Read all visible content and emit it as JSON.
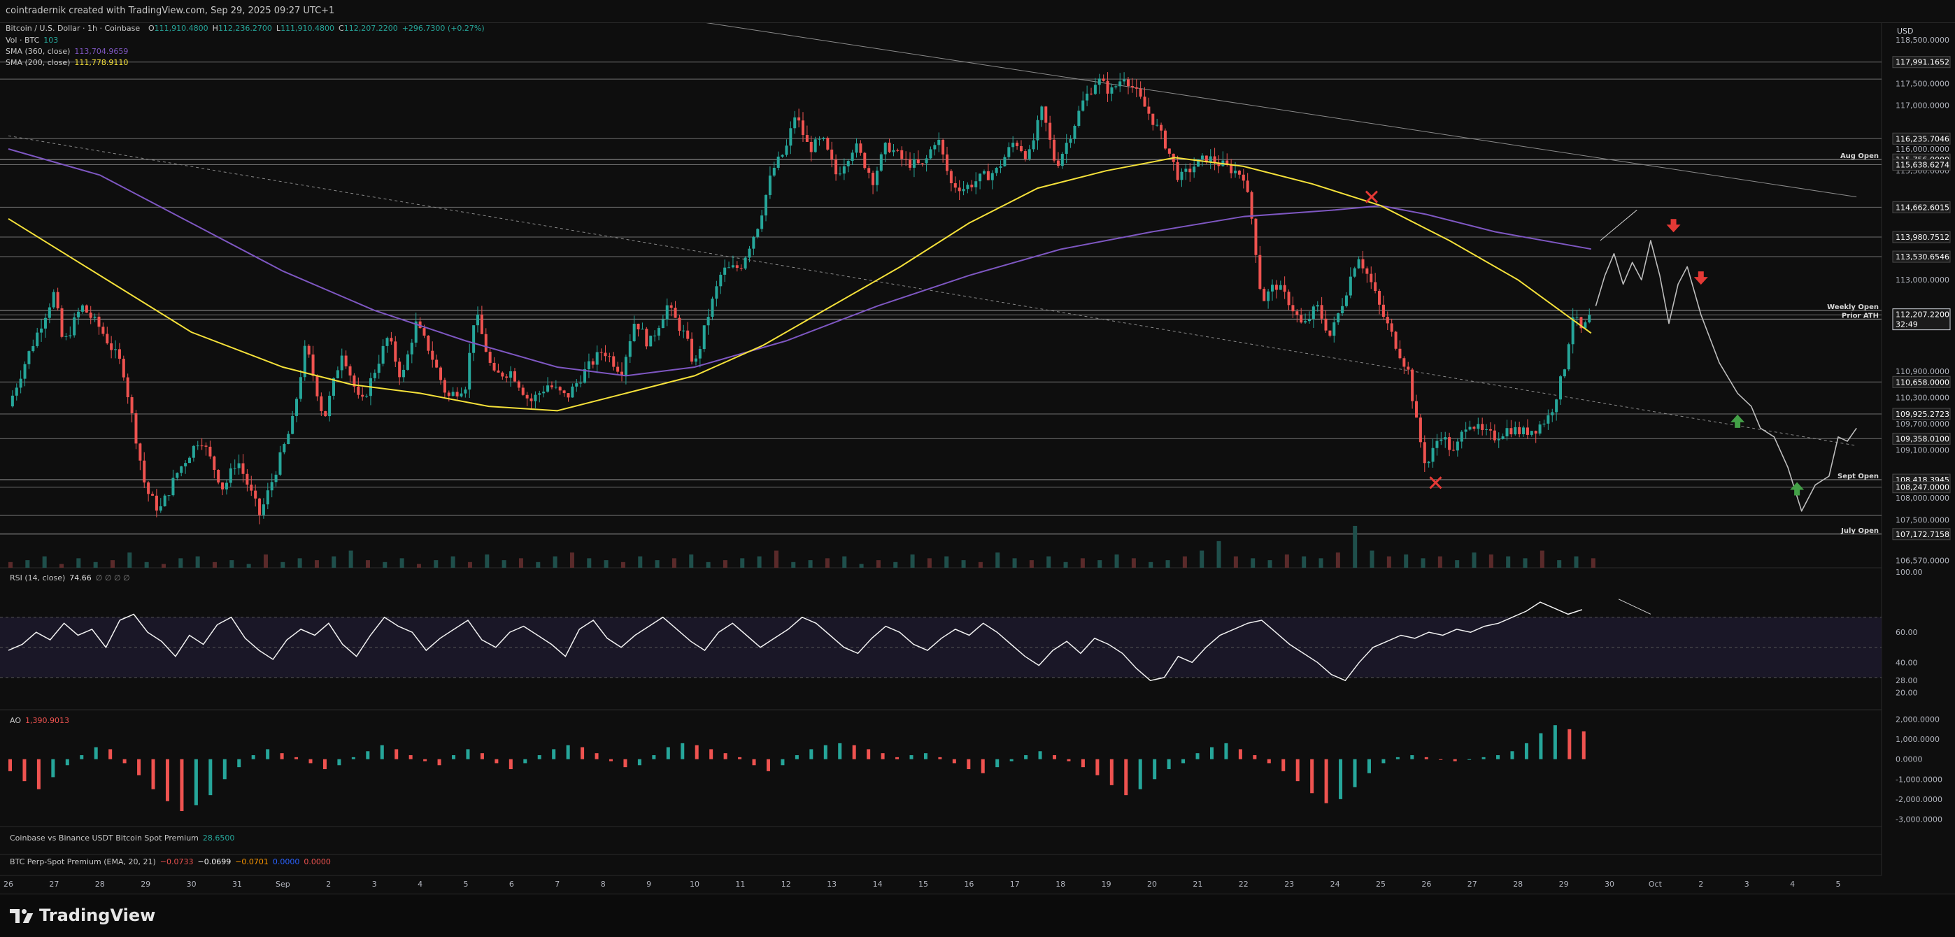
{
  "header": {
    "credit": "cointradernik created with TradingView.com, Sep 29, 2025 09:27 UTC+1"
  },
  "legend": {
    "symbol": "Bitcoin / U.S. Dollar · 1h · Coinbase",
    "ohlc": [
      {
        "k": "O",
        "v": "111,910.4800"
      },
      {
        "k": "H",
        "v": "112,236.2700"
      },
      {
        "k": "L",
        "v": "111,910.4800"
      },
      {
        "k": "C",
        "v": "112,207.2200"
      }
    ],
    "change": "+296.7300 (+0.27%)",
    "vol_label": "Vol · BTC",
    "vol_value": "103",
    "sma360_label": "SMA (360, close)",
    "sma360_value": "113,704.9659",
    "sma200_label": "SMA (200, close)",
    "sma200_value": "111,778.9110"
  },
  "colors": {
    "up": "#26a69a",
    "down": "#ef5350",
    "sma200": "#f5e13a",
    "sma360": "#7e57c2",
    "arrow_down": "#e53935",
    "arrow_up": "#43a047",
    "x_mark": "#e53935",
    "text_label": "#c8c8c8"
  },
  "currency": "USD",
  "price_axis": {
    "ticks": [
      "118,500.0000",
      "117,500.0000",
      "117,000.0000",
      "116,000.0000",
      "115,500.0000",
      "114,000.0000",
      "113,000.0000",
      "112,000.0000",
      "110,900.0000",
      "110,300.0000",
      "109,700.0000",
      "109,100.0000",
      "108,000.0000",
      "107,500.0000",
      "106,570.0000"
    ],
    "tick_values": [
      118500,
      117500,
      117000,
      116000,
      115500,
      114000,
      113000,
      112000,
      110900,
      110300,
      109700,
      109100,
      108000,
      107500,
      106570
    ],
    "boxed": [
      {
        "value": 117991.1652,
        "text": "117,991.1652"
      },
      {
        "value": 116235.7046,
        "text": "116,235.7046"
      },
      {
        "value": 115756.0,
        "text": "115,756.0000"
      },
      {
        "value": 115638.6274,
        "text": "115,638.6274"
      },
      {
        "value": 114662.6015,
        "text": "114,662.6015"
      },
      {
        "value": 113980.7512,
        "text": "113,980.7512"
      },
      {
        "value": 113530.6546,
        "text": "113,530.6546"
      },
      {
        "value": 112197.0,
        "text": "112,197.0000"
      },
      {
        "value": 110658.0,
        "text": "110,658.0000"
      },
      {
        "value": 109925.2723,
        "text": "109,925.2723"
      },
      {
        "value": 109358.01,
        "text": "109,358.0100"
      },
      {
        "value": 108418.3945,
        "text": "108,418.3945"
      },
      {
        "value": 108247.0,
        "text": "108,247.0000"
      },
      {
        "value": 107172.7158,
        "text": "107,172.7158"
      }
    ],
    "current_price": "112,207.2200",
    "countdown": "32:49"
  },
  "levels": [
    {
      "name": "Aug Open",
      "value": 115756.0
    },
    {
      "name": "Weekly Open",
      "value": 112300.0
    },
    {
      "name": "Prior ATH",
      "value": 112100.0
    },
    {
      "name": "Sept Open",
      "value": 108418.3945
    },
    {
      "name": "July Open",
      "value": 107172.7158
    }
  ],
  "plain_levels": [
    117991.1652,
    117600,
    116235.7046,
    115638.6274,
    114662.6015,
    113980.7512,
    113530.6546,
    112197,
    110658,
    109925.2723,
    109358.01,
    108247,
    107600
  ],
  "chart_data": [
    {
      "type": "candlestick",
      "title": "Bitcoin / U.S. Dollar · 1h · Coinbase",
      "x_ticks": [
        "26",
        "27",
        "28",
        "29",
        "30",
        "31",
        "Sep",
        "2",
        "3",
        "4",
        "5",
        "6",
        "7",
        "8",
        "9",
        "10",
        "11",
        "12",
        "13",
        "14",
        "15",
        "16",
        "17",
        "18",
        "19",
        "20",
        "21",
        "22",
        "23",
        "24",
        "25",
        "26",
        "27",
        "28",
        "29",
        "30",
        "Oct",
        "2",
        "3",
        "4",
        "5"
      ],
      "ylim": [
        106400,
        118900
      ],
      "price_path": [
        [
          0,
          110100
        ],
        [
          0.4,
          111200
        ],
        [
          1,
          112700
        ],
        [
          1.2,
          111500
        ],
        [
          1.6,
          112400
        ],
        [
          2.0,
          111900
        ],
        [
          2.5,
          111000
        ],
        [
          3.0,
          108200
        ],
        [
          3.3,
          107700
        ],
        [
          3.7,
          108600
        ],
        [
          4.2,
          109400
        ],
        [
          4.7,
          108200
        ],
        [
          5.0,
          108900
        ],
        [
          5.5,
          107600
        ],
        [
          6.0,
          109100
        ],
        [
          6.2,
          109700
        ],
        [
          6.5,
          111500
        ],
        [
          6.9,
          109800
        ],
        [
          7.3,
          111400
        ],
        [
          7.7,
          110100
        ],
        [
          8.0,
          110900
        ],
        [
          8.3,
          111700
        ],
        [
          8.6,
          110700
        ],
        [
          8.9,
          112000
        ],
        [
          9.2,
          111400
        ],
        [
          9.6,
          110300
        ],
        [
          10.0,
          110600
        ],
        [
          10.2,
          112300
        ],
        [
          10.6,
          110800
        ],
        [
          11.0,
          110900
        ],
        [
          11.4,
          110200
        ],
        [
          11.8,
          110600
        ],
        [
          12.2,
          110300
        ],
        [
          12.6,
          110900
        ],
        [
          13.0,
          111400
        ],
        [
          13.4,
          110900
        ],
        [
          13.7,
          112100
        ],
        [
          14.0,
          111500
        ],
        [
          14.4,
          112400
        ],
        [
          14.8,
          111700
        ],
        [
          15.0,
          111000
        ],
        [
          15.3,
          112200
        ],
        [
          15.6,
          113200
        ],
        [
          16.0,
          113300
        ],
        [
          16.4,
          114300
        ],
        [
          16.7,
          115500
        ],
        [
          17.0,
          116000
        ],
        [
          17.2,
          116800
        ],
        [
          17.5,
          116000
        ],
        [
          17.8,
          116200
        ],
        [
          18.1,
          115400
        ],
        [
          18.5,
          116100
        ],
        [
          18.9,
          115300
        ],
        [
          19.2,
          116100
        ],
        [
          19.6,
          115700
        ],
        [
          20.0,
          115600
        ],
        [
          20.3,
          116300
        ],
        [
          20.6,
          115200
        ],
        [
          20.9,
          115100
        ],
        [
          21.2,
          115300
        ],
        [
          21.6,
          115500
        ],
        [
          22.0,
          116200
        ],
        [
          22.3,
          115800
        ],
        [
          22.6,
          116900
        ],
        [
          22.9,
          115600
        ],
        [
          23.2,
          116300
        ],
        [
          23.5,
          117100
        ],
        [
          23.8,
          117600
        ],
        [
          24.1,
          117300
        ],
        [
          24.4,
          117700
        ],
        [
          24.7,
          117200
        ],
        [
          25.0,
          116700
        ],
        [
          25.3,
          116100
        ],
        [
          25.6,
          115300
        ],
        [
          25.9,
          115600
        ],
        [
          26.2,
          115800
        ],
        [
          26.6,
          115600
        ],
        [
          27.0,
          115400
        ],
        [
          27.2,
          114300
        ],
        [
          27.4,
          112500
        ],
        [
          27.7,
          112900
        ],
        [
          28.0,
          112500
        ],
        [
          28.3,
          111900
        ],
        [
          28.6,
          112400
        ],
        [
          28.9,
          111700
        ],
        [
          29.2,
          112600
        ],
        [
          29.5,
          113600
        ],
        [
          29.8,
          112900
        ],
        [
          30.0,
          112300
        ],
        [
          30.3,
          111600
        ],
        [
          30.6,
          110900
        ],
        [
          30.8,
          109600
        ],
        [
          31.0,
          108700
        ],
        [
          31.3,
          109500
        ],
        [
          31.6,
          109000
        ],
        [
          31.9,
          109800
        ],
        [
          32.2,
          109500
        ],
        [
          32.5,
          109400
        ],
        [
          32.8,
          109600
        ],
        [
          33.1,
          109500
        ],
        [
          33.4,
          109600
        ],
        [
          33.7,
          109900
        ],
        [
          34.0,
          110900
        ],
        [
          34.2,
          112200
        ],
        [
          34.4,
          111800
        ],
        [
          34.6,
          112207
        ]
      ],
      "sma200_path": [
        [
          0,
          114400
        ],
        [
          2,
          113100
        ],
        [
          4,
          111800
        ],
        [
          6,
          111000
        ],
        [
          7.5,
          110600
        ],
        [
          9,
          110400
        ],
        [
          10.5,
          110100
        ],
        [
          12,
          110000
        ],
        [
          13.5,
          110400
        ],
        [
          15,
          110800
        ],
        [
          16.5,
          111500
        ],
        [
          18,
          112400
        ],
        [
          19.5,
          113300
        ],
        [
          21,
          114300
        ],
        [
          22.5,
          115100
        ],
        [
          24,
          115500
        ],
        [
          25.5,
          115800
        ],
        [
          27,
          115600
        ],
        [
          28.5,
          115200
        ],
        [
          30,
          114700
        ],
        [
          31.5,
          113900
        ],
        [
          33,
          113000
        ],
        [
          34.6,
          111779
        ]
      ],
      "sma360_path": [
        [
          0,
          116000
        ],
        [
          2,
          115400
        ],
        [
          4,
          114300
        ],
        [
          6,
          113200
        ],
        [
          8,
          112300
        ],
        [
          10,
          111600
        ],
        [
          12,
          111000
        ],
        [
          13.5,
          110800
        ],
        [
          15,
          111000
        ],
        [
          17,
          111600
        ],
        [
          19,
          112400
        ],
        [
          21,
          113100
        ],
        [
          23,
          113700
        ],
        [
          25,
          114100
        ],
        [
          27,
          114450
        ],
        [
          29,
          114600
        ],
        [
          30,
          114700
        ],
        [
          31,
          114500
        ],
        [
          32.5,
          114100
        ],
        [
          34.6,
          113705
        ]
      ],
      "forecast_path": [
        [
          34.7,
          112400
        ],
        [
          34.9,
          113100
        ],
        [
          35.1,
          113600
        ],
        [
          35.3,
          112900
        ],
        [
          35.5,
          113400
        ],
        [
          35.7,
          113000
        ],
        [
          35.9,
          113900
        ],
        [
          36.1,
          113100
        ],
        [
          36.3,
          112000
        ],
        [
          36.5,
          112900
        ],
        [
          36.7,
          113300
        ],
        [
          37.0,
          112200
        ],
        [
          37.4,
          111100
        ],
        [
          37.8,
          110400
        ],
        [
          38.1,
          110100
        ],
        [
          38.3,
          109600
        ],
        [
          38.6,
          109400
        ],
        [
          38.9,
          108700
        ],
        [
          39.2,
          107700
        ],
        [
          39.5,
          108300
        ],
        [
          39.8,
          108500
        ],
        [
          40.0,
          109400
        ],
        [
          40.2,
          109300
        ],
        [
          40.4,
          109600
        ]
      ],
      "annotations": {
        "x_marks": [
          [
            29.8,
            114900
          ],
          [
            31.2,
            108350
          ]
        ],
        "arrows_down": [
          [
            36.4,
            114200
          ],
          [
            37.0,
            113000
          ]
        ],
        "arrows_up": [
          [
            37.8,
            109800
          ],
          [
            39.1,
            108250
          ]
        ],
        "arrow_note": [
          [
            34.8,
            113900
          ],
          [
            35.6,
            114600
          ]
        ],
        "trend_dotted": [
          [
            0,
            116300
          ],
          [
            40.4,
            109200
          ]
        ],
        "trend_solid": [
          [
            15.2,
            118900
          ],
          [
            40.4,
            114900
          ]
        ]
      }
    },
    {
      "type": "bar",
      "title": "Vol · BTC",
      "value": 103,
      "bars": [
        3,
        4,
        6,
        2,
        5,
        3,
        4,
        8,
        3,
        2,
        5,
        6,
        3,
        4,
        2,
        7,
        3,
        5,
        4,
        6,
        9,
        4,
        3,
        5,
        2,
        4,
        6,
        3,
        7,
        4,
        5,
        3,
        6,
        8,
        5,
        4,
        3,
        6,
        4,
        5,
        7,
        3,
        4,
        5,
        6,
        9,
        3,
        4,
        5,
        6,
        2,
        4,
        3,
        7,
        5,
        6,
        4,
        3,
        8,
        5,
        4,
        6,
        3,
        5,
        4,
        7,
        5,
        3,
        4,
        6,
        9,
        14,
        6,
        5,
        4,
        7,
        6,
        5,
        8,
        22,
        9,
        6,
        7,
        5,
        6,
        4,
        8,
        7,
        6,
        5,
        9,
        4,
        6,
        5
      ]
    },
    {
      "type": "line",
      "title": "RSI (14, close)",
      "value": "74.66",
      "glyphs": "∅ ∅ ∅ ∅",
      "ticks": [
        "100.00",
        "60.00",
        "40.00",
        "28.00",
        "20.00"
      ],
      "tick_values": [
        100,
        60,
        40,
        28,
        20
      ],
      "ylim": [
        10,
        100
      ],
      "bands": [
        70,
        50,
        30
      ],
      "values": [
        48,
        52,
        60,
        55,
        66,
        58,
        62,
        50,
        68,
        72,
        60,
        54,
        44,
        58,
        52,
        65,
        70,
        56,
        48,
        42,
        55,
        62,
        58,
        66,
        52,
        44,
        58,
        70,
        64,
        60,
        48,
        56,
        62,
        68,
        55,
        50,
        60,
        64,
        58,
        52,
        44,
        62,
        68,
        56,
        50,
        58,
        64,
        70,
        62,
        54,
        48,
        60,
        66,
        58,
        50,
        56,
        62,
        70,
        66,
        58,
        50,
        46,
        56,
        64,
        60,
        52,
        48,
        56,
        62,
        58,
        66,
        60,
        52,
        44,
        38,
        48,
        54,
        46,
        56,
        52,
        46,
        36,
        28,
        30,
        44,
        40,
        50,
        58,
        62,
        66,
        68,
        60,
        52,
        46,
        40,
        32,
        28,
        40,
        50,
        54,
        58,
        56,
        60,
        58,
        62,
        60,
        64,
        66,
        70,
        74,
        80,
        76,
        72,
        75
      ]
    },
    {
      "type": "bar",
      "title": "AO",
      "value": "1,390.9013",
      "ticks": [
        "2,000.0000",
        "1,000.0000",
        "0.0000",
        "-1,000.0000",
        "-2,000.0000",
        "-3,000.0000"
      ],
      "tick_values": [
        2000,
        1000,
        0,
        -1000,
        -2000,
        -3000
      ],
      "ylim": [
        -3300,
        2300
      ],
      "values": [
        -600,
        -1100,
        -1500,
        -900,
        -300,
        200,
        600,
        500,
        -200,
        -800,
        -1500,
        -2100,
        -2600,
        -2300,
        -1800,
        -1000,
        -400,
        200,
        500,
        300,
        100,
        -200,
        -500,
        -300,
        100,
        400,
        700,
        500,
        200,
        -100,
        -300,
        200,
        500,
        300,
        -200,
        -500,
        -200,
        200,
        500,
        700,
        600,
        300,
        -100,
        -400,
        -300,
        200,
        600,
        800,
        700,
        500,
        300,
        100,
        -300,
        -600,
        -300,
        200,
        500,
        700,
        800,
        700,
        500,
        300,
        100,
        200,
        300,
        100,
        -200,
        -500,
        -700,
        -400,
        -100,
        200,
        400,
        200,
        -100,
        -400,
        -800,
        -1300,
        -1800,
        -1500,
        -1000,
        -500,
        -200,
        300,
        600,
        800,
        500,
        200,
        -200,
        -600,
        -1100,
        -1700,
        -2200,
        -2000,
        -1400,
        -700,
        -200,
        100,
        200,
        100,
        0,
        -100,
        0,
        100,
        200,
        400,
        800,
        1300,
        1700,
        1500,
        1391
      ]
    },
    {
      "type": "line",
      "title": "Coinbase vs Binance USDT Bitcoin Spot Premium",
      "value": "28.6500"
    },
    {
      "type": "line",
      "title": "BTC Perp-Spot Premium (EMA, 20, 21)",
      "values": [
        "−0.0733",
        "−0.0699",
        "−0.0701",
        "0.0000",
        "0.0000"
      ]
    }
  ],
  "footer": {
    "brand": "TradingView"
  }
}
